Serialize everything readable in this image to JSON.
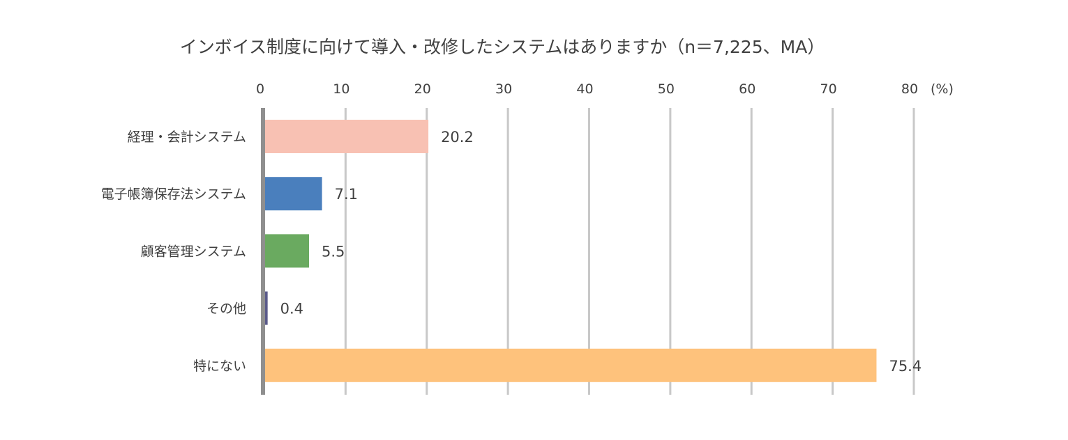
{
  "chart_data": {
    "type": "bar",
    "orientation": "horizontal",
    "title": "インボイス制度に向けて導入・改修したシステムはありますか（n＝7,225、MA）",
    "unit_label": "(%)",
    "categories": [
      "経理・会計システム",
      "電子帳簿保存法システム",
      "顧客管理システム",
      "その他",
      "特にない"
    ],
    "values": [
      20.2,
      7.1,
      5.5,
      0.4,
      75.4
    ],
    "value_labels": [
      "20.2",
      "7.1",
      "5.5",
      "0.4",
      "75.4"
    ],
    "colors": [
      "#f8c1b3",
      "#4a7fbd",
      "#6aaa60",
      "#5a5a8a",
      "#fec27c"
    ],
    "xticks": [
      "0",
      "10",
      "20",
      "30",
      "40",
      "50",
      "60",
      "70",
      "80"
    ],
    "xlim": [
      0,
      80
    ],
    "grid": true,
    "axis_position": "top"
  }
}
